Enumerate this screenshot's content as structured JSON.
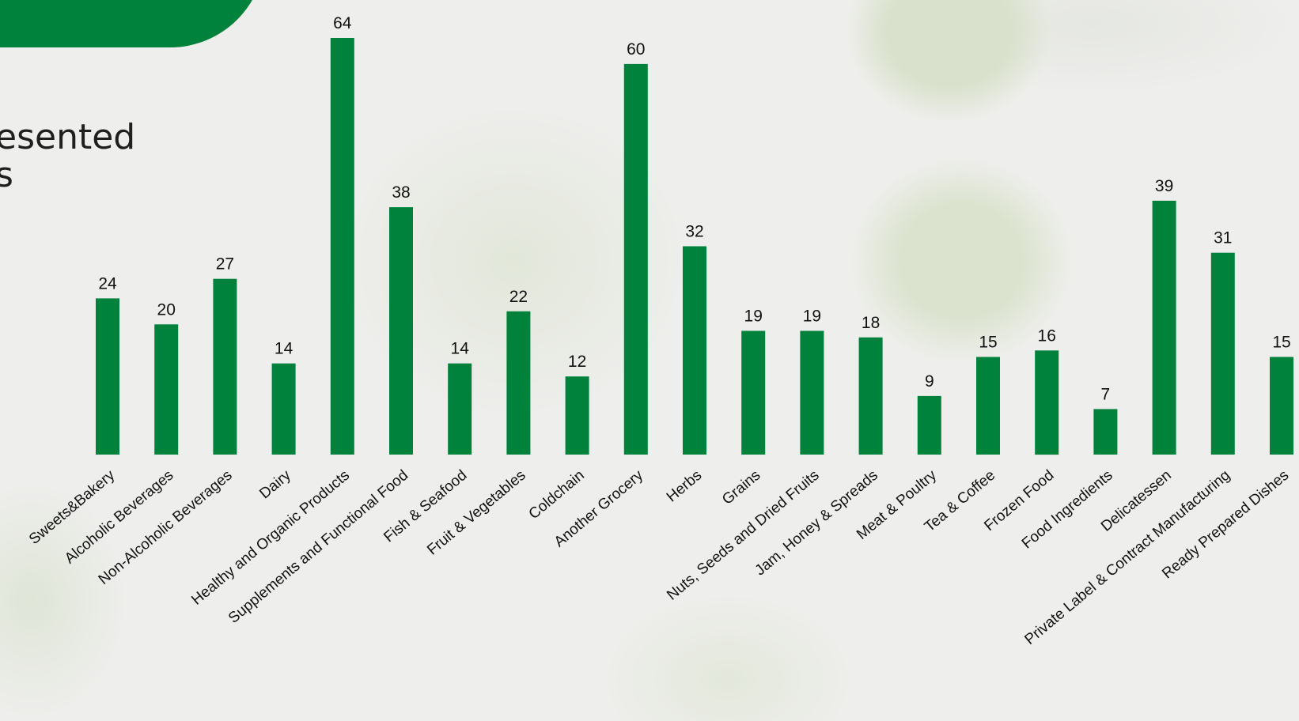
{
  "slide": {
    "title_fragment_lines": [
      "esented",
      "s"
    ]
  },
  "colors": {
    "bar": "#00823c",
    "tab": "#00823c",
    "text": "#111111"
  },
  "chart_data": {
    "type": "bar",
    "title": "",
    "xlabel": "",
    "ylabel": "",
    "grid": false,
    "legend": "none",
    "ylim": [
      0,
      64
    ],
    "categories": [
      "Sweets&Bakery",
      "Alcoholic Beverages",
      "Non-Alcoholic Beverages",
      "Dairy",
      "Healthy and Organic Products",
      "Supplements and Functional Food",
      "Fish & Seafood",
      "Fruit & Vegetables",
      "Coldchain",
      "Another Grocery",
      "Herbs",
      "Grains",
      "Nuts, Seeds and Dried Fruits",
      "Jam, Honey & Spreads",
      "Meat & Poultry",
      "Tea & Coffee",
      "Frozen Food",
      "Food Ingredients",
      "Delicatessen",
      "Private Label & Contract Manufacturing",
      "Ready Prepared Dishes"
    ],
    "values": [
      24,
      20,
      27,
      14,
      64,
      38,
      14,
      22,
      12,
      60,
      32,
      19,
      19,
      18,
      9,
      15,
      16,
      7,
      39,
      31,
      15
    ]
  }
}
